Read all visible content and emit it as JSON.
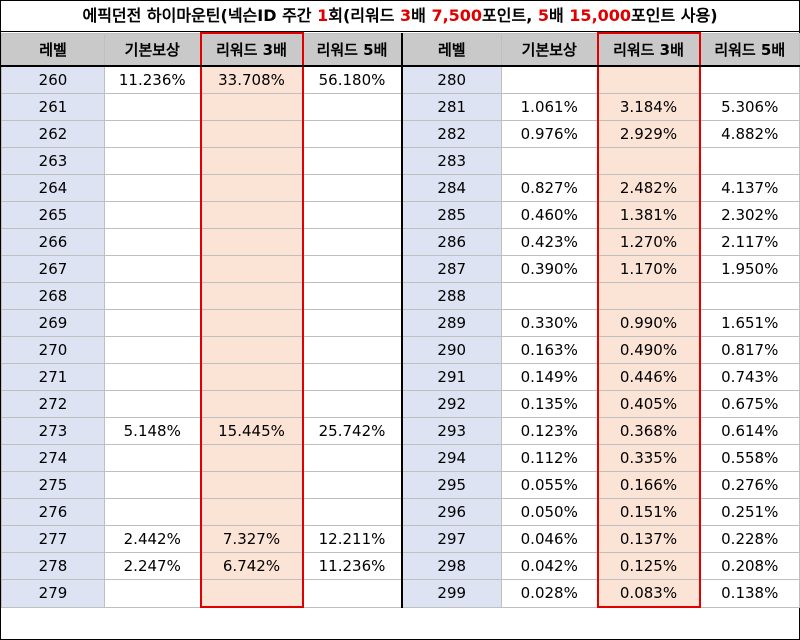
{
  "title": {
    "parts": [
      {
        "text": "에픽던전 하이마운틴(넥슨ID 주간 ",
        "red": false
      },
      {
        "text": "1",
        "red": true
      },
      {
        "text": "회(리워드 ",
        "red": false
      },
      {
        "text": "3",
        "red": true
      },
      {
        "text": "배 ",
        "red": false
      },
      {
        "text": "7,500",
        "red": true
      },
      {
        "text": "포인트, ",
        "red": false
      },
      {
        "text": "5",
        "red": true
      },
      {
        "text": "배 ",
        "red": false
      },
      {
        "text": "15,000",
        "red": true
      },
      {
        "text": "포인트 사용)",
        "red": false
      }
    ]
  },
  "headers": [
    "레벨",
    "기본보상",
    "리워드 3배",
    "리워드 5배",
    "레벨",
    "기본보상",
    "리워드 3배",
    "리워드 5배"
  ],
  "colors": {
    "header_bg": "#c9c9c9",
    "level_bg": "#dde3f2",
    "reward3_bg": "#fbe3d6",
    "highlight_border": "#e00000"
  },
  "left": [
    {
      "level": "260",
      "base": "11.236%",
      "r3": "33.708%",
      "r5": "56.180%"
    },
    {
      "level": "261",
      "base": "",
      "r3": "",
      "r5": ""
    },
    {
      "level": "262",
      "base": "",
      "r3": "",
      "r5": ""
    },
    {
      "level": "263",
      "base": "",
      "r3": "",
      "r5": ""
    },
    {
      "level": "264",
      "base": "",
      "r3": "",
      "r5": ""
    },
    {
      "level": "265",
      "base": "",
      "r3": "",
      "r5": ""
    },
    {
      "level": "266",
      "base": "",
      "r3": "",
      "r5": ""
    },
    {
      "level": "267",
      "base": "",
      "r3": "",
      "r5": ""
    },
    {
      "level": "268",
      "base": "",
      "r3": "",
      "r5": ""
    },
    {
      "level": "269",
      "base": "",
      "r3": "",
      "r5": ""
    },
    {
      "level": "270",
      "base": "",
      "r3": "",
      "r5": ""
    },
    {
      "level": "271",
      "base": "",
      "r3": "",
      "r5": ""
    },
    {
      "level": "272",
      "base": "",
      "r3": "",
      "r5": ""
    },
    {
      "level": "273",
      "base": "5.148%",
      "r3": "15.445%",
      "r5": "25.742%"
    },
    {
      "level": "274",
      "base": "",
      "r3": "",
      "r5": ""
    },
    {
      "level": "275",
      "base": "",
      "r3": "",
      "r5": ""
    },
    {
      "level": "276",
      "base": "",
      "r3": "",
      "r5": ""
    },
    {
      "level": "277",
      "base": "2.442%",
      "r3": "7.327%",
      "r5": "12.211%"
    },
    {
      "level": "278",
      "base": "2.247%",
      "r3": "6.742%",
      "r5": "11.236%"
    },
    {
      "level": "279",
      "base": "",
      "r3": "",
      "r5": ""
    }
  ],
  "right": [
    {
      "level": "280",
      "base": "",
      "r3": "",
      "r5": ""
    },
    {
      "level": "281",
      "base": "1.061%",
      "r3": "3.184%",
      "r5": "5.306%"
    },
    {
      "level": "282",
      "base": "0.976%",
      "r3": "2.929%",
      "r5": "4.882%"
    },
    {
      "level": "283",
      "base": "",
      "r3": "",
      "r5": ""
    },
    {
      "level": "284",
      "base": "0.827%",
      "r3": "2.482%",
      "r5": "4.137%"
    },
    {
      "level": "285",
      "base": "0.460%",
      "r3": "1.381%",
      "r5": "2.302%"
    },
    {
      "level": "286",
      "base": "0.423%",
      "r3": "1.270%",
      "r5": "2.117%"
    },
    {
      "level": "287",
      "base": "0.390%",
      "r3": "1.170%",
      "r5": "1.950%"
    },
    {
      "level": "288",
      "base": "",
      "r3": "",
      "r5": ""
    },
    {
      "level": "289",
      "base": "0.330%",
      "r3": "0.990%",
      "r5": "1.651%"
    },
    {
      "level": "290",
      "base": "0.163%",
      "r3": "0.490%",
      "r5": "0.817%"
    },
    {
      "level": "291",
      "base": "0.149%",
      "r3": "0.446%",
      "r5": "0.743%"
    },
    {
      "level": "292",
      "base": "0.135%",
      "r3": "0.405%",
      "r5": "0.675%"
    },
    {
      "level": "293",
      "base": "0.123%",
      "r3": "0.368%",
      "r5": "0.614%"
    },
    {
      "level": "294",
      "base": "0.112%",
      "r3": "0.335%",
      "r5": "0.558%"
    },
    {
      "level": "295",
      "base": "0.055%",
      "r3": "0.166%",
      "r5": "0.276%"
    },
    {
      "level": "296",
      "base": "0.050%",
      "r3": "0.151%",
      "r5": "0.251%"
    },
    {
      "level": "297",
      "base": "0.046%",
      "r3": "0.137%",
      "r5": "0.228%"
    },
    {
      "level": "298",
      "base": "0.042%",
      "r3": "0.125%",
      "r5": "0.208%"
    },
    {
      "level": "299",
      "base": "0.028%",
      "r3": "0.083%",
      "r5": "0.138%"
    }
  ]
}
